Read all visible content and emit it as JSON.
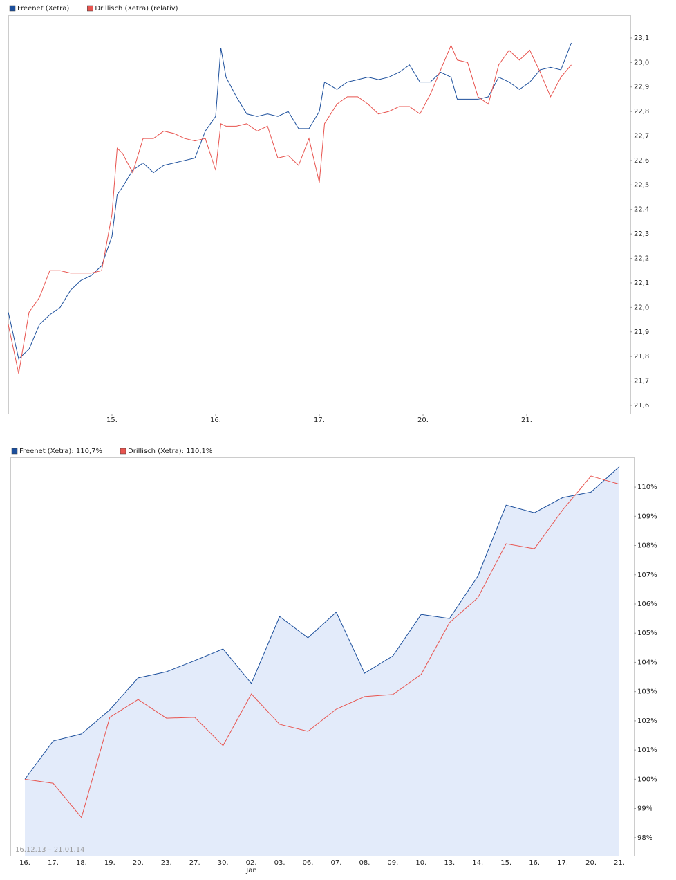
{
  "chart_data": [
    {
      "type": "line",
      "x": [
        -1.0,
        -0.9,
        -0.8,
        -0.7,
        -0.6,
        -0.5,
        -0.4,
        -0.3,
        -0.2,
        -0.1,
        0.0,
        0.05,
        0.1,
        0.2,
        0.3,
        0.4,
        0.5,
        0.6,
        0.7,
        0.8,
        0.9,
        1.0,
        1.05,
        1.1,
        1.2,
        1.3,
        1.4,
        1.5,
        1.6,
        1.7,
        1.8,
        1.9,
        2.0,
        2.05,
        2.17,
        2.27,
        2.37,
        2.47,
        2.57,
        2.67,
        2.77,
        2.87,
        2.97,
        3.07,
        3.17,
        3.27,
        3.33,
        3.43,
        3.53,
        3.63,
        3.73,
        3.83,
        3.93,
        4.03,
        4.13,
        4.23,
        4.33,
        4.43
      ],
      "series": [
        {
          "name": "Freenet (Xetra)",
          "color": "#1c4f9c",
          "values": [
            21.98,
            21.79,
            21.83,
            21.93,
            21.97,
            22.0,
            22.07,
            22.11,
            22.13,
            22.17,
            22.29,
            22.46,
            22.49,
            22.56,
            22.59,
            22.55,
            22.58,
            22.59,
            22.6,
            22.61,
            22.72,
            22.78,
            23.06,
            22.94,
            22.86,
            22.79,
            22.78,
            22.79,
            22.78,
            22.8,
            22.73,
            22.73,
            22.8,
            22.92,
            22.89,
            22.92,
            22.93,
            22.94,
            22.93,
            22.94,
            22.96,
            22.99,
            22.92,
            22.92,
            22.96,
            22.94,
            22.85,
            22.85,
            22.85,
            22.86,
            22.94,
            22.92,
            22.89,
            22.92,
            22.97,
            22.98,
            22.97,
            23.08
          ]
        },
        {
          "name": "Drillisch (Xetra) (relativ)",
          "color": "#e8544f",
          "values": [
            21.93,
            21.73,
            21.98,
            22.04,
            22.15,
            22.15,
            22.14,
            22.14,
            22.14,
            22.15,
            22.38,
            22.65,
            22.63,
            22.55,
            22.69,
            22.69,
            22.72,
            22.71,
            22.69,
            22.68,
            22.69,
            22.56,
            22.75,
            22.74,
            22.74,
            22.75,
            22.72,
            22.74,
            22.61,
            22.62,
            22.58,
            22.69,
            22.51,
            22.75,
            22.83,
            22.86,
            22.86,
            22.83,
            22.79,
            22.8,
            22.82,
            22.82,
            22.79,
            22.87,
            22.97,
            23.07,
            23.01,
            23.0,
            22.86,
            22.83,
            22.99,
            23.05,
            23.01,
            23.05,
            22.96,
            22.86,
            22.94,
            22.99
          ]
        }
      ],
      "xlim": [
        -1,
        5
      ],
      "xticks": [
        {
          "value": 0,
          "label": "15."
        },
        {
          "value": 1,
          "label": "16."
        },
        {
          "value": 2,
          "label": "17."
        },
        {
          "value": 3,
          "label": "20."
        },
        {
          "value": 4,
          "label": "21."
        }
      ],
      "ylim": [
        21.566,
        23.193
      ],
      "yticks": [
        {
          "value": 21.6,
          "label": "21,6"
        },
        {
          "value": 21.7,
          "label": "21,7"
        },
        {
          "value": 21.8,
          "label": "21,8"
        },
        {
          "value": 21.9,
          "label": "21,9"
        },
        {
          "value": 22.0,
          "label": "22,0"
        },
        {
          "value": 22.1,
          "label": "22,1"
        },
        {
          "value": 22.2,
          "label": "22,2"
        },
        {
          "value": 22.3,
          "label": "22,3"
        },
        {
          "value": 22.4,
          "label": "22,4"
        },
        {
          "value": 22.5,
          "label": "22,5"
        },
        {
          "value": 22.6,
          "label": "22,6"
        },
        {
          "value": 22.7,
          "label": "22,7"
        },
        {
          "value": 22.8,
          "label": "22,8"
        },
        {
          "value": 22.9,
          "label": "22,9"
        },
        {
          "value": 23.0,
          "label": "23,0"
        },
        {
          "value": 23.1,
          "label": "23,1"
        }
      ],
      "grid": false
    },
    {
      "type": "line",
      "categories": [
        "16.",
        "17.",
        "18.",
        "19.",
        "20.",
        "23.",
        "27.",
        "30.",
        "02.",
        "03.",
        "06.",
        "07.",
        "08.",
        "09.",
        "10.",
        "13.",
        "14.",
        "15.",
        "16.",
        "17.",
        "20.",
        "21."
      ],
      "x_sublabel": "Jan",
      "date_range": "16.12.13 – 21.01.14",
      "series": [
        {
          "name": "Freenet (Xetra): 110,7%",
          "color": "#1c4f9c",
          "area_color": "#e3ebfa",
          "values": [
            100.0,
            101.31,
            101.55,
            102.38,
            103.47,
            103.68,
            104.06,
            104.46,
            103.28,
            105.57,
            104.84,
            105.72,
            103.63,
            104.22,
            105.64,
            105.5,
            106.95,
            109.38,
            109.12,
            109.64,
            109.83,
            110.7
          ]
        },
        {
          "name": "Drillisch (Xetra): 110,1%",
          "color": "#e8544f",
          "values": [
            100.0,
            99.86,
            98.69,
            102.12,
            102.73,
            102.09,
            102.12,
            101.15,
            102.92,
            101.88,
            101.64,
            102.4,
            102.83,
            102.9,
            103.59,
            105.36,
            106.21,
            108.06,
            107.89,
            109.22,
            110.38,
            110.1
          ]
        }
      ],
      "ylim": [
        97.38,
        111.02
      ],
      "yticks": [
        {
          "value": 98,
          "label": "98%"
        },
        {
          "value": 99,
          "label": "99%"
        },
        {
          "value": 100,
          "label": "100%"
        },
        {
          "value": 101,
          "label": "101%"
        },
        {
          "value": 102,
          "label": "102%"
        },
        {
          "value": 103,
          "label": "103%"
        },
        {
          "value": 104,
          "label": "104%"
        },
        {
          "value": 105,
          "label": "105%"
        },
        {
          "value": 106,
          "label": "106%"
        },
        {
          "value": 107,
          "label": "107%"
        },
        {
          "value": 108,
          "label": "108%"
        },
        {
          "value": 109,
          "label": "109%"
        },
        {
          "value": 110,
          "label": "110%"
        }
      ],
      "grid": false
    }
  ]
}
